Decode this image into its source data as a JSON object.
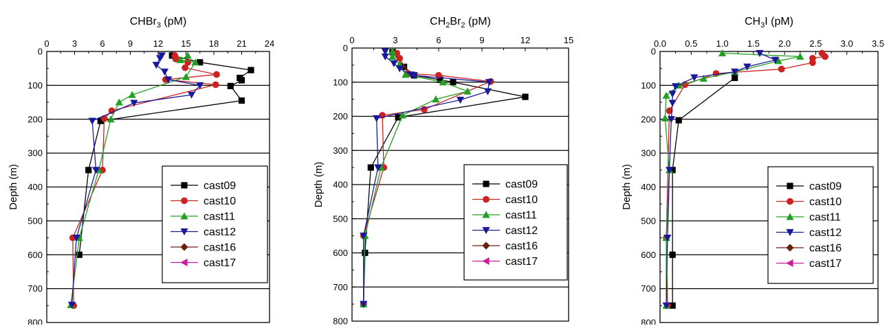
{
  "series_colors": {
    "cast09": "#000000",
    "cast10": "#cc2222",
    "cast11": "#22a022",
    "cast12": "#1a1a99",
    "cast16": "#6b1f0f",
    "cast17": "#cc1d99"
  },
  "series_markers": {
    "cast09": "square",
    "cast10": "circle",
    "cast11": "triangle-up",
    "cast12": "triangle-down",
    "cast16": "diamond",
    "cast17": "triangle-left"
  },
  "chart_data": [
    {
      "type": "line",
      "title_main": "CHBr",
      "title_sub": "3",
      "title_tail": " (pM)",
      "ylabel": "Depth (m)",
      "xlim": [
        0,
        24
      ],
      "ylim": [
        0,
        800
      ],
      "y_reversed": true,
      "xticks": [
        0,
        3,
        6,
        9,
        12,
        15,
        18,
        21,
        24
      ],
      "xtick_labels": [
        "0",
        "3",
        "6",
        "9",
        "12",
        "15",
        "18",
        "21",
        "24"
      ],
      "yticks": [
        0,
        100,
        200,
        300,
        400,
        500,
        600,
        700,
        800
      ],
      "ytick_labels": [
        "0",
        "100",
        "200",
        "300",
        "400",
        "500",
        "600",
        "700",
        "800"
      ],
      "grid": "horizontal",
      "legend": "lower-right",
      "series": [
        {
          "name": "cast09",
          "x": [
            13.5,
            16.5,
            22,
            20.8,
            21,
            19.8,
            21,
            5.8,
            4.5,
            3.5
          ],
          "y": [
            12,
            32,
            55,
            78,
            85,
            102,
            145,
            205,
            350,
            600
          ]
        },
        {
          "name": "cast10",
          "x": [
            13.8,
            13.9,
            15.2,
            14.9,
            18.3,
            12.8,
            18.2,
            7,
            6.2,
            6,
            2.8,
            2.9
          ],
          "y": [
            12,
            22,
            32,
            48,
            68,
            83,
            98,
            175,
            198,
            350,
            550,
            750
          ]
        },
        {
          "name": "cast11",
          "x": [
            15.2,
            14.4,
            16,
            15,
            9.2,
            7.8,
            6.9,
            5.6,
            3.5,
            2.6
          ],
          "y": [
            12,
            25,
            32,
            75,
            128,
            150,
            200,
            350,
            550,
            748
          ]
        },
        {
          "name": "cast12",
          "x": [
            12.4,
            12.2,
            11.8,
            12.7,
            13.1,
            16.5,
            15.6,
            9.4,
            4.9,
            5.3,
            3.2,
            2.7
          ],
          "y": [
            12,
            20,
            40,
            60,
            83,
            100,
            128,
            152,
            205,
            350,
            550,
            748
          ]
        },
        {
          "name": "cast16",
          "x": [],
          "y": []
        },
        {
          "name": "cast17",
          "x": [],
          "y": []
        }
      ]
    },
    {
      "type": "line",
      "title_main": "CH",
      "title_sub": "2",
      "title_mid": "Br",
      "title_sub2": "2",
      "title_tail": " (pM)",
      "ylabel": "Depth (m)",
      "xlim": [
        0,
        15
      ],
      "ylim": [
        0,
        800
      ],
      "y_reversed": true,
      "xticks": [
        0,
        3,
        6,
        9,
        12,
        15
      ],
      "xtick_labels": [
        "0",
        "3",
        "6",
        "9",
        "12",
        "15"
      ],
      "yticks": [
        0,
        100,
        200,
        300,
        400,
        500,
        600,
        700,
        800
      ],
      "ytick_labels": [
        "0",
        "100",
        "200",
        "300",
        "400",
        "500",
        "600",
        "700",
        "800"
      ],
      "grid": "horizontal",
      "legend": "lower-right",
      "series": [
        {
          "name": "cast09",
          "x": [
            2.8,
            3.6,
            4.3,
            6.1,
            7,
            12,
            3.2,
            1.3,
            0.9,
            0.8
          ],
          "y": [
            12,
            55,
            80,
            93,
            100,
            143,
            203,
            350,
            600,
            750
          ]
        },
        {
          "name": "cast10",
          "x": [
            3.1,
            3.3,
            3.9,
            6,
            9.6,
            5,
            2.1,
            2.2,
            0.8,
            0.8
          ],
          "y": [
            15,
            30,
            75,
            80,
            98,
            180,
            197,
            350,
            550,
            750
          ]
        },
        {
          "name": "cast11",
          "x": [
            2.8,
            2.8,
            3.3,
            3.7,
            6.3,
            8,
            5.8,
            3.5,
            2,
            0.9,
            0.8
          ],
          "y": [
            10,
            25,
            48,
            78,
            100,
            127,
            150,
            197,
            350,
            550,
            750
          ]
        },
        {
          "name": "cast12",
          "x": [
            2.3,
            2.3,
            2.9,
            3.3,
            4.1,
            4.3,
            9.5,
            9.4,
            7.5,
            1.7,
            1.8,
            0.8,
            0.8
          ],
          "y": [
            10,
            25,
            45,
            60,
            78,
            80,
            100,
            127,
            152,
            206,
            350,
            550,
            750
          ]
        },
        {
          "name": "cast16",
          "x": [],
          "y": []
        },
        {
          "name": "cast17",
          "x": [],
          "y": []
        }
      ]
    },
    {
      "type": "line",
      "title_main": "CH",
      "title_sub": "3",
      "title_tail": "I (pM)",
      "ylabel": "Depth (m)",
      "xlim": [
        0,
        3.5
      ],
      "ylim": [
        0,
        800
      ],
      "y_reversed": true,
      "xticks": [
        0,
        0.5,
        1,
        1.5,
        2,
        2.5,
        3,
        3.5
      ],
      "xtick_labels": [
        "0.0",
        "0.5",
        "1.0",
        "1.5",
        "2.0",
        "2.5",
        "3.0",
        "3.5"
      ],
      "yticks": [
        0,
        100,
        200,
        300,
        400,
        500,
        600,
        700,
        800
      ],
      "ytick_labels": [
        "0",
        "100",
        "200",
        "300",
        "400",
        "500",
        "600",
        "700",
        "800"
      ],
      "grid": "horizontal",
      "legend": "lower-right",
      "series": [
        {
          "name": "cast09",
          "x": [
            1.2,
            0.3,
            0.2,
            0.2,
            0.2
          ],
          "y": [
            78,
            203,
            350,
            600,
            750
          ]
        },
        {
          "name": "cast10",
          "x": [
            2.6,
            2.65,
            2.45,
            2.45,
            1.95,
            0.9,
            0.4,
            0.15,
            0.1,
            0.12
          ],
          "y": [
            5,
            15,
            20,
            33,
            52,
            65,
            98,
            175,
            550,
            750
          ]
        },
        {
          "name": "cast11",
          "x": [
            1,
            2.25,
            1.9,
            1.2,
            0.7,
            0.3,
            0.1,
            0.08,
            0.15,
            0.1,
            0.1
          ],
          "y": [
            5,
            15,
            28,
            60,
            80,
            100,
            130,
            197,
            350,
            550,
            750
          ]
        },
        {
          "name": "cast12",
          "x": [
            1.6,
            1.85,
            1.4,
            1.2,
            0.55,
            0.25,
            0.2,
            0.2,
            0.18,
            0.15,
            0.12,
            0.1
          ],
          "y": [
            5,
            25,
            45,
            60,
            77,
            103,
            125,
            152,
            200,
            350,
            550,
            750
          ]
        },
        {
          "name": "cast16",
          "x": [],
          "y": []
        },
        {
          "name": "cast17",
          "x": [],
          "y": []
        }
      ]
    }
  ]
}
